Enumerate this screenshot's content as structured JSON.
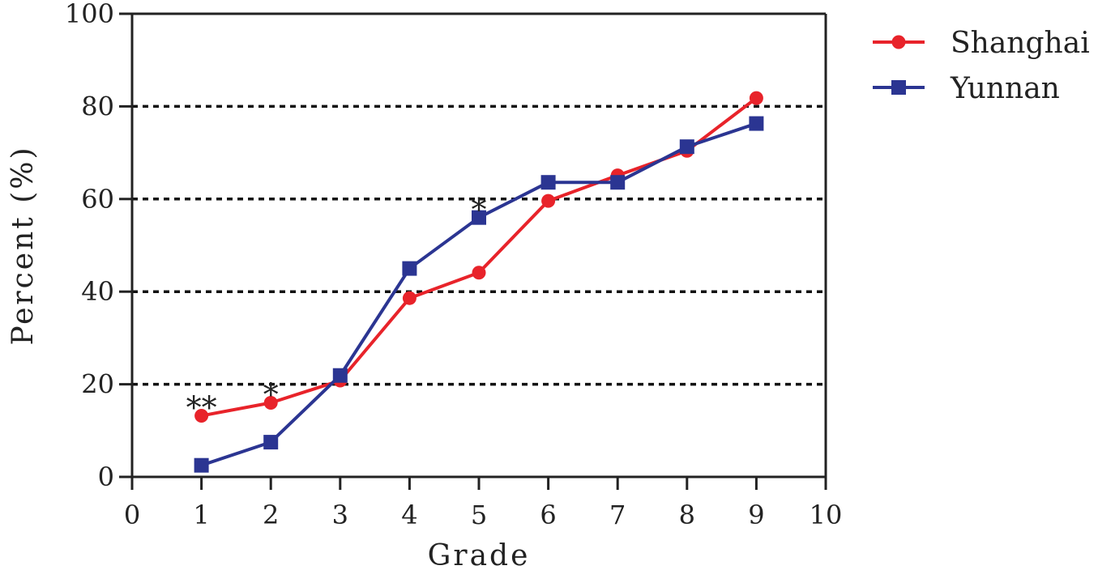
{
  "chart_data": {
    "type": "line",
    "xlabel": "Grade",
    "ylabel": "Percent (%)",
    "xlim": [
      0,
      10
    ],
    "ylim": [
      0,
      100
    ],
    "xticks": [
      "0",
      "1",
      "2",
      "3",
      "4",
      "5",
      "6",
      "7",
      "8",
      "9",
      "10"
    ],
    "yticks": [
      "0",
      "20",
      "40",
      "60",
      "80",
      "100"
    ],
    "gridlines_y": [
      20,
      40,
      60,
      80
    ],
    "legend_position": "top-right outside",
    "series": [
      {
        "name": "Shanghai",
        "color": "#e8232a",
        "marker": "circle",
        "x": [
          1,
          2,
          3,
          4,
          5,
          6,
          7,
          8,
          9
        ],
        "y": [
          13.2,
          16.0,
          20.8,
          38.6,
          44.1,
          59.6,
          65.1,
          70.4,
          81.8
        ]
      },
      {
        "name": "Yunnan",
        "color": "#2b3592",
        "marker": "square",
        "x": [
          1,
          2,
          3,
          4,
          5,
          6,
          7,
          8,
          9
        ],
        "y": [
          2.5,
          7.5,
          21.9,
          45.0,
          56.0,
          63.6,
          63.6,
          71.3,
          76.3
        ]
      }
    ],
    "annotations": [
      {
        "text": "**",
        "x": 1,
        "y": 16.5
      },
      {
        "text": "*",
        "x": 2,
        "y": 19.3
      },
      {
        "text": "*",
        "x": 5,
        "y": 59.3
      }
    ]
  }
}
